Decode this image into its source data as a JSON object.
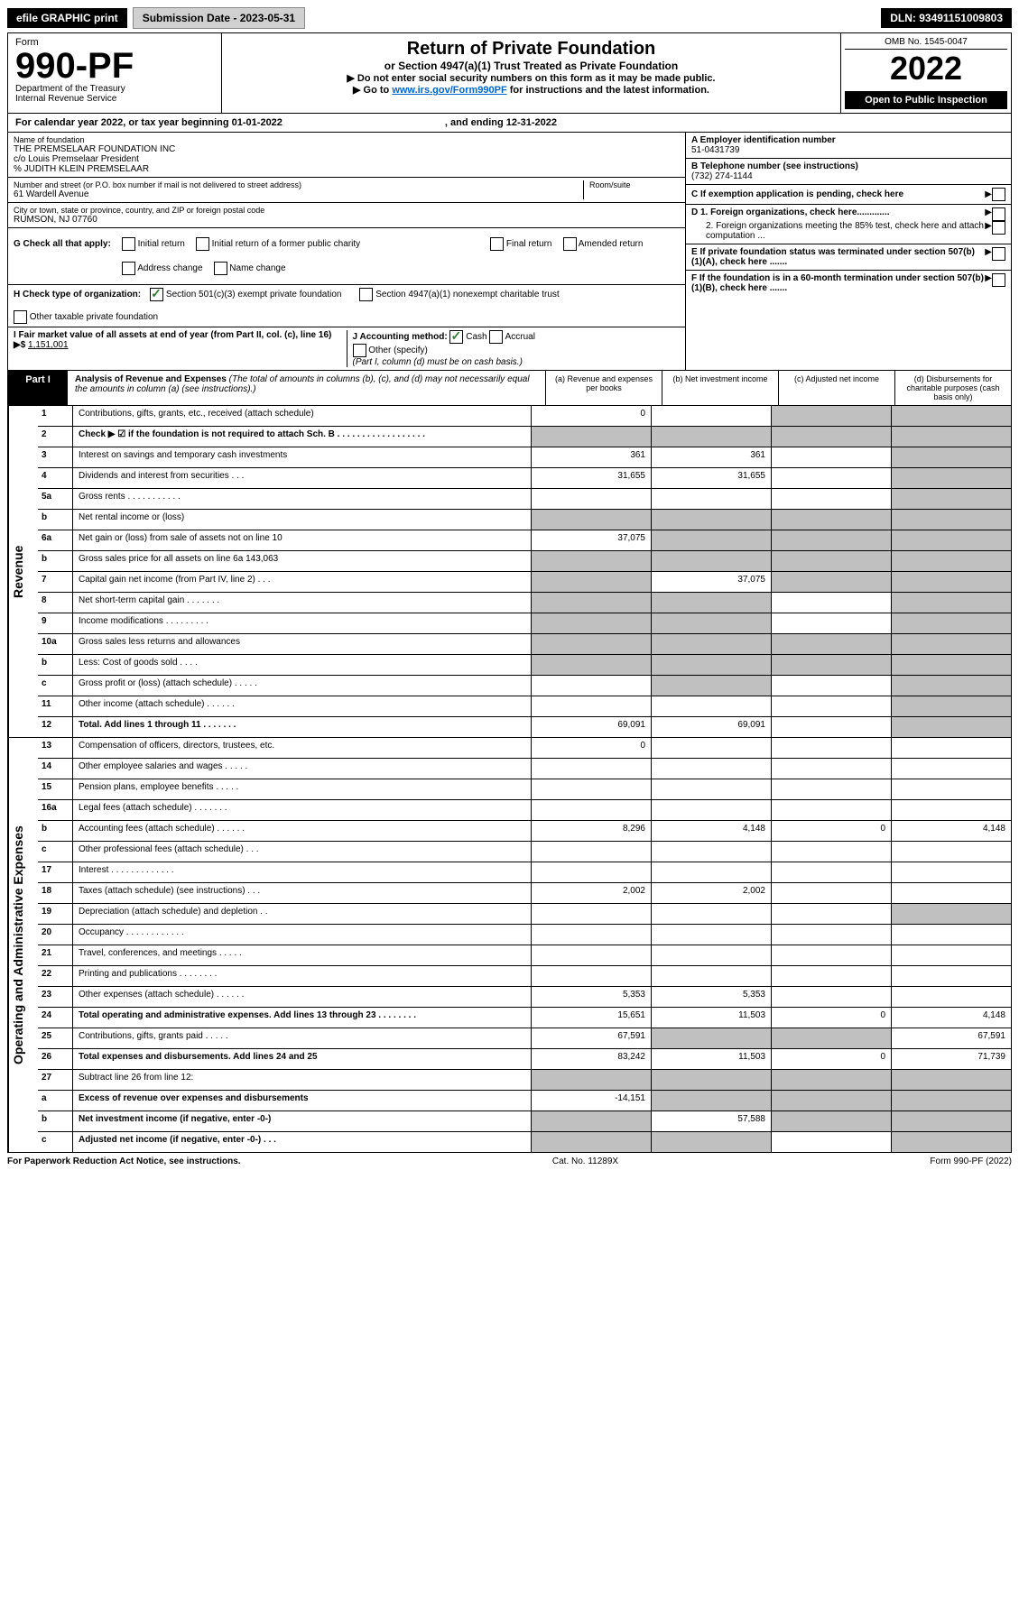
{
  "top": {
    "efile": "efile GRAPHIC print",
    "submission": "Submission Date - 2023-05-31",
    "dln": "DLN: 93491151009803"
  },
  "header": {
    "form_label": "Form",
    "form_num": "990-PF",
    "dept": "Department of the Treasury",
    "irs": "Internal Revenue Service",
    "title": "Return of Private Foundation",
    "subtitle": "or Section 4947(a)(1) Trust Treated as Private Foundation",
    "instr1": "▶ Do not enter social security numbers on this form as it may be made public.",
    "instr2": "▶ Go to www.irs.gov/Form990PF for instructions and the latest information.",
    "omb": "OMB No. 1545-0047",
    "year": "2022",
    "open": "Open to Public Inspection"
  },
  "calyear": {
    "text": "For calendar year 2022, or tax year beginning 01-01-2022",
    "ending": ", and ending 12-31-2022"
  },
  "entity": {
    "name_label": "Name of foundation",
    "name1": "THE PREMSELAAR FOUNDATION INC",
    "name2": "c/o Louis Premselaar President",
    "name3": "% JUDITH KLEIN PREMSELAAR",
    "addr_label": "Number and street (or P.O. box number if mail is not delivered to street address)",
    "addr": "61 Wardell Avenue",
    "room_label": "Room/suite",
    "city_label": "City or town, state or province, country, and ZIP or foreign postal code",
    "city": "RUMSON, NJ  07760",
    "ein_label": "A Employer identification number",
    "ein": "51-0431739",
    "phone_label": "B Telephone number (see instructions)",
    "phone": "(732) 274-1144",
    "c_label": "C If exemption application is pending, check here",
    "d1": "D 1. Foreign organizations, check here.............",
    "d2": "2. Foreign organizations meeting the 85% test, check here and attach computation ...",
    "e": "E  If private foundation status was terminated under section 507(b)(1)(A), check here .......",
    "f": "F  If the foundation is in a 60-month termination under section 507(b)(1)(B), check here .......",
    "g_label": "G Check all that apply:",
    "g_opts": [
      "Initial return",
      "Final return",
      "Address change",
      "Initial return of a former public charity",
      "Amended return",
      "Name change"
    ],
    "h_label": "H Check type of organization:",
    "h1": "Section 501(c)(3) exempt private foundation",
    "h2": "Section 4947(a)(1) nonexempt charitable trust",
    "h3": "Other taxable private foundation",
    "i_label": "I Fair market value of all assets at end of year (from Part II, col. (c), line 16) ▶$ ",
    "i_val": "1,151,001",
    "j_label": "J Accounting method:",
    "j_cash": "Cash",
    "j_accrual": "Accrual",
    "j_other": "Other (specify)",
    "j_note": "(Part I, column (d) must be on cash basis.)"
  },
  "part1": {
    "label": "Part I",
    "title": "Analysis of Revenue and Expenses",
    "note": "(The total of amounts in columns (b), (c), and (d) may not necessarily equal the amounts in column (a) (see instructions).)",
    "col_a": "(a) Revenue and expenses per books",
    "col_b": "(b) Net investment income",
    "col_c": "(c) Adjusted net income",
    "col_d": "(d) Disbursements for charitable purposes (cash basis only)"
  },
  "side_labels": {
    "revenue": "Revenue",
    "expenses": "Operating and Administrative Expenses"
  },
  "rows": [
    {
      "n": "1",
      "label": "Contributions, gifts, grants, etc., received (attach schedule)",
      "a": "0",
      "b": "",
      "c": "shaded",
      "d": "shaded"
    },
    {
      "n": "2",
      "label": "Check ▶ ☑ if the foundation is not required to attach Sch. B  . . . . . . . . . . . . . . . . . .",
      "a": "shaded",
      "b": "shaded",
      "c": "shaded",
      "d": "shaded",
      "bold": true
    },
    {
      "n": "3",
      "label": "Interest on savings and temporary cash investments",
      "a": "361",
      "b": "361",
      "c": "",
      "d": "shaded"
    },
    {
      "n": "4",
      "label": "Dividends and interest from securities  . . .",
      "a": "31,655",
      "b": "31,655",
      "c": "",
      "d": "shaded"
    },
    {
      "n": "5a",
      "label": "Gross rents  . . . . . . . . . . .",
      "a": "",
      "b": "",
      "c": "",
      "d": "shaded"
    },
    {
      "n": "b",
      "label": "Net rental income or (loss)  ",
      "a": "shaded",
      "b": "shaded",
      "c": "shaded",
      "d": "shaded"
    },
    {
      "n": "6a",
      "label": "Net gain or (loss) from sale of assets not on line 10",
      "a": "37,075",
      "b": "shaded",
      "c": "shaded",
      "d": "shaded"
    },
    {
      "n": "b",
      "label": "Gross sales price for all assets on line 6a            143,063",
      "a": "shaded",
      "b": "shaded",
      "c": "shaded",
      "d": "shaded"
    },
    {
      "n": "7",
      "label": "Capital gain net income (from Part IV, line 2)  . . .",
      "a": "shaded",
      "b": "37,075",
      "c": "shaded",
      "d": "shaded"
    },
    {
      "n": "8",
      "label": "Net short-term capital gain  . . . . . . .",
      "a": "shaded",
      "b": "shaded",
      "c": "",
      "d": "shaded"
    },
    {
      "n": "9",
      "label": "Income modifications  . . . . . . . . .",
      "a": "shaded",
      "b": "shaded",
      "c": "",
      "d": "shaded"
    },
    {
      "n": "10a",
      "label": "Gross sales less returns and allowances",
      "a": "shaded",
      "b": "shaded",
      "c": "shaded",
      "d": "shaded"
    },
    {
      "n": "b",
      "label": "Less: Cost of goods sold  . . . .",
      "a": "shaded",
      "b": "shaded",
      "c": "shaded",
      "d": "shaded"
    },
    {
      "n": "c",
      "label": "Gross profit or (loss) (attach schedule)  . . . . .",
      "a": "",
      "b": "shaded",
      "c": "",
      "d": "shaded"
    },
    {
      "n": "11",
      "label": "Other income (attach schedule)  . . . . . .",
      "a": "",
      "b": "",
      "c": "",
      "d": "shaded"
    },
    {
      "n": "12",
      "label": "Total. Add lines 1 through 11  . . . . . . .",
      "a": "69,091",
      "b": "69,091",
      "c": "",
      "d": "shaded",
      "bold": true
    }
  ],
  "exp_rows": [
    {
      "n": "13",
      "label": "Compensation of officers, directors, trustees, etc.",
      "a": "0",
      "b": "",
      "c": "",
      "d": ""
    },
    {
      "n": "14",
      "label": "Other employee salaries and wages  . . . . .",
      "a": "",
      "b": "",
      "c": "",
      "d": ""
    },
    {
      "n": "15",
      "label": "Pension plans, employee benefits  . . . . .",
      "a": "",
      "b": "",
      "c": "",
      "d": ""
    },
    {
      "n": "16a",
      "label": "Legal fees (attach schedule)  . . . . . . .",
      "a": "",
      "b": "",
      "c": "",
      "d": ""
    },
    {
      "n": "b",
      "label": "Accounting fees (attach schedule)  . . . . . .",
      "a": "8,296",
      "b": "4,148",
      "c": "0",
      "d": "4,148"
    },
    {
      "n": "c",
      "label": "Other professional fees (attach schedule)  . . .",
      "a": "",
      "b": "",
      "c": "",
      "d": ""
    },
    {
      "n": "17",
      "label": "Interest  . . . . . . . . . . . . .",
      "a": "",
      "b": "",
      "c": "",
      "d": ""
    },
    {
      "n": "18",
      "label": "Taxes (attach schedule) (see instructions)  . . .",
      "a": "2,002",
      "b": "2,002",
      "c": "",
      "d": ""
    },
    {
      "n": "19",
      "label": "Depreciation (attach schedule) and depletion  . .",
      "a": "",
      "b": "",
      "c": "",
      "d": "shaded"
    },
    {
      "n": "20",
      "label": "Occupancy  . . . . . . . . . . . .",
      "a": "",
      "b": "",
      "c": "",
      "d": ""
    },
    {
      "n": "21",
      "label": "Travel, conferences, and meetings  . . . . .",
      "a": "",
      "b": "",
      "c": "",
      "d": ""
    },
    {
      "n": "22",
      "label": "Printing and publications  . . . . . . . .",
      "a": "",
      "b": "",
      "c": "",
      "d": ""
    },
    {
      "n": "23",
      "label": "Other expenses (attach schedule)  . . . . . .",
      "a": "5,353",
      "b": "5,353",
      "c": "",
      "d": ""
    },
    {
      "n": "24",
      "label": "Total operating and administrative expenses. Add lines 13 through 23  . . . . . . . .",
      "a": "15,651",
      "b": "11,503",
      "c": "0",
      "d": "4,148",
      "bold": true
    },
    {
      "n": "25",
      "label": "Contributions, gifts, grants paid  . . . . .",
      "a": "67,591",
      "b": "shaded",
      "c": "shaded",
      "d": "67,591"
    },
    {
      "n": "26",
      "label": "Total expenses and disbursements. Add lines 24 and 25",
      "a": "83,242",
      "b": "11,503",
      "c": "0",
      "d": "71,739",
      "bold": true
    },
    {
      "n": "27",
      "label": "Subtract line 26 from line 12:",
      "a": "shaded",
      "b": "shaded",
      "c": "shaded",
      "d": "shaded"
    },
    {
      "n": "a",
      "label": "Excess of revenue over expenses and disbursements",
      "a": "-14,151",
      "b": "shaded",
      "c": "shaded",
      "d": "shaded",
      "bold": true
    },
    {
      "n": "b",
      "label": "Net investment income (if negative, enter -0-)",
      "a": "shaded",
      "b": "57,588",
      "c": "shaded",
      "d": "shaded",
      "bold": true
    },
    {
      "n": "c",
      "label": "Adjusted net income (if negative, enter -0-)  . . .",
      "a": "shaded",
      "b": "shaded",
      "c": "",
      "d": "shaded",
      "bold": true
    }
  ],
  "footer": {
    "left": "For Paperwork Reduction Act Notice, see instructions.",
    "center": "Cat. No. 11289X",
    "right": "Form 990-PF (2022)"
  }
}
